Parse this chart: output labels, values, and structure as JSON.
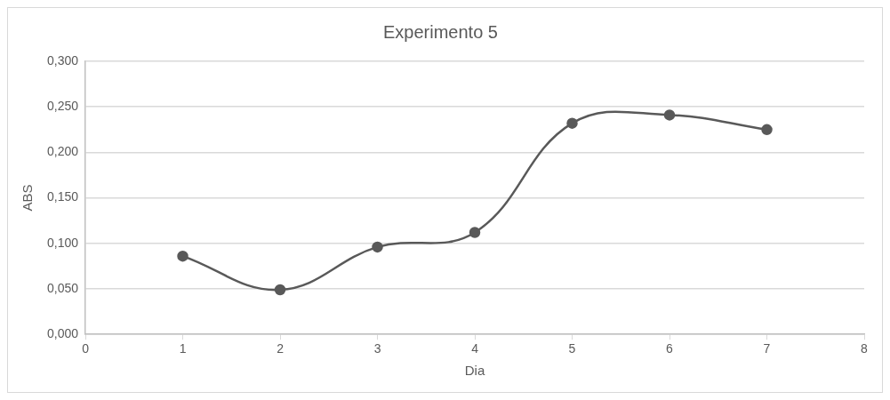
{
  "chart_data": {
    "type": "line",
    "title": "Experimento 5",
    "xlabel": "Dia",
    "ylabel": "ABS",
    "x": [
      1,
      2,
      3,
      4,
      5,
      6,
      7
    ],
    "series": [
      {
        "color": "#595959",
        "values": [
          0.086,
          0.049,
          0.096,
          0.112,
          0.232,
          0.241,
          0.225
        ]
      }
    ],
    "xlim": [
      0,
      8
    ],
    "xticks": [
      0,
      1,
      2,
      3,
      4,
      5,
      6,
      7,
      8
    ],
    "ylim": [
      0,
      0.3
    ],
    "yticks": [
      {
        "value": 0,
        "label": "0,000"
      },
      {
        "value": 0.05,
        "label": "0,050"
      },
      {
        "value": 0.1,
        "label": "0,100"
      },
      {
        "value": 0.15,
        "label": "0,150"
      },
      {
        "value": 0.2,
        "label": "0,200"
      },
      {
        "value": 0.25,
        "label": "0,250"
      },
      {
        "value": 0.3,
        "label": "0,300"
      }
    ],
    "grid": "y",
    "legend": false,
    "marker": "circle",
    "line_style": "solid"
  }
}
